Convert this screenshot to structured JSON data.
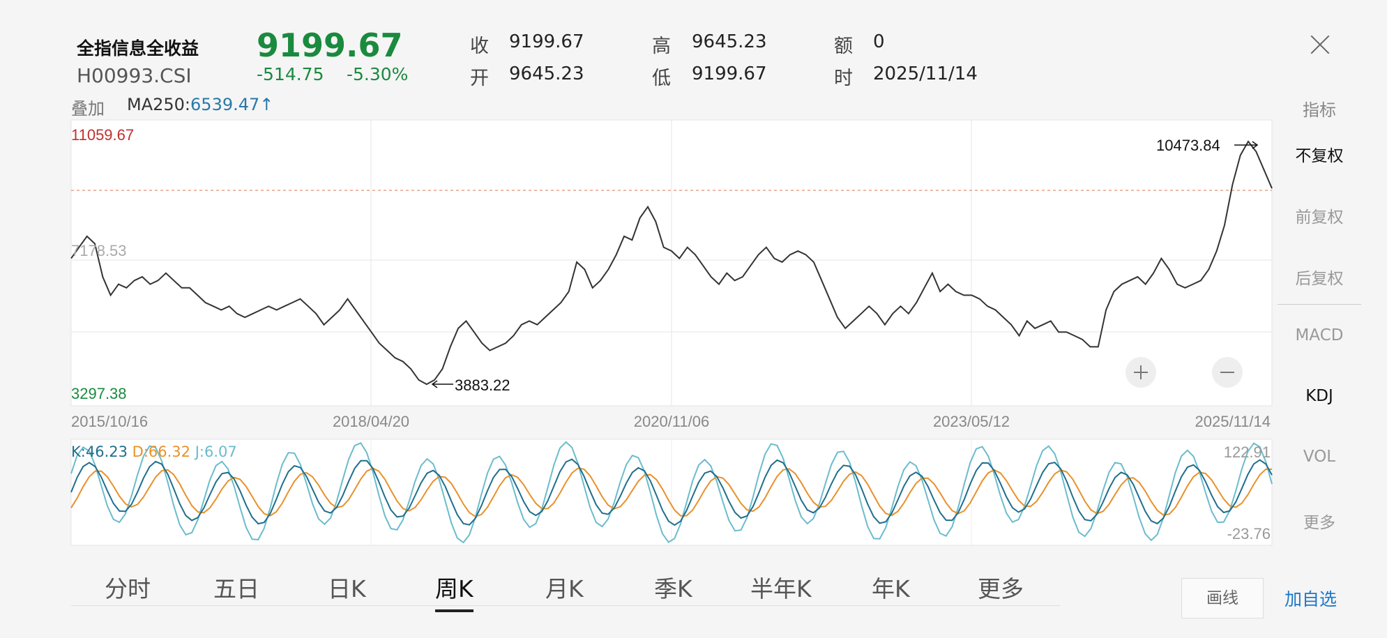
{
  "header": {
    "name": "全指信息全收益",
    "code": "H00993.CSI",
    "price": "9199.67",
    "change": "-514.75",
    "change_pct": "-5.30%",
    "stats": [
      {
        "label": "收",
        "value": "9199.67"
      },
      {
        "label": "开",
        "value": "9645.23"
      },
      {
        "label": "高",
        "value": "9645.23"
      },
      {
        "label": "低",
        "value": "9199.67"
      },
      {
        "label": "额",
        "value": "0"
      },
      {
        "label": "时",
        "value": "2025/11/14"
      }
    ]
  },
  "overlay": {
    "label": "叠加",
    "ma_label": "MA250:",
    "ma_value": "6539.47",
    "ma_arrow": "↑"
  },
  "sidebar": {
    "title": "指标",
    "items": [
      {
        "label": "不复权",
        "active": true
      },
      {
        "label": "前复权",
        "active": false
      },
      {
        "label": "后复权",
        "active": false
      },
      {
        "label": "MACD",
        "active": false
      },
      {
        "label": "KDJ",
        "active": true
      },
      {
        "label": "VOL",
        "active": false
      },
      {
        "label": "更多",
        "active": false
      }
    ]
  },
  "main_chart": {
    "y_max_label": "11059.67",
    "y_mid_label": "7178.53",
    "y_min_label": "3297.38",
    "high_marker": "10473.84",
    "low_marker": "3883.22",
    "x_labels": [
      "2015/10/16",
      "2018/04/20",
      "2020/11/06",
      "2023/05/12",
      "2025/11/14"
    ],
    "colors": {
      "line": "#333333",
      "max": "#c0302d",
      "min": "#1a8a3e",
      "ref": "#e9a08a",
      "grid": "#e4e4e4"
    }
  },
  "kdj": {
    "k_label": "K:46.23",
    "d_label": "D:66.32",
    "j_label": "J:6.07",
    "max_label": "122.91",
    "min_label": "-23.76",
    "colors": {
      "k": "#1f6e8c",
      "d": "#e8912a",
      "j": "#6bbccb"
    }
  },
  "tabs": [
    {
      "label": "分时",
      "active": false
    },
    {
      "label": "五日",
      "active": false
    },
    {
      "label": "日K",
      "active": false
    },
    {
      "label": "周K",
      "active": true
    },
    {
      "label": "月K",
      "active": false
    },
    {
      "label": "季K",
      "active": false
    },
    {
      "label": "半年K",
      "active": false
    },
    {
      "label": "年K",
      "active": false
    },
    {
      "label": "更多",
      "active": false
    }
  ],
  "actions": {
    "draw": "画线",
    "add": "加自选"
  },
  "chart_data": {
    "type": "line",
    "x_range": [
      "2015/10/16",
      "2025/11/14"
    ],
    "ylim": [
      3297.38,
      11059.67
    ],
    "series": [
      {
        "values": [
          7300,
          7600,
          7900,
          7700,
          6800,
          6300,
          6600,
          6500,
          6700,
          6800,
          6600,
          6700,
          6900,
          6700,
          6500,
          6500,
          6300,
          6100,
          6000,
          5900,
          6000,
          5800,
          5700,
          5800,
          5900,
          6000,
          5900,
          6000,
          6100,
          6200,
          6000,
          5800,
          5500,
          5700,
          5900,
          6200,
          5900,
          5600,
          5300,
          5000,
          4800,
          4600,
          4500,
          4300,
          4000,
          3883,
          4000,
          4300,
          4900,
          5400,
          5600,
          5300,
          5000,
          4800,
          4900,
          5000,
          5200,
          5500,
          5600,
          5500,
          5700,
          5900,
          6100,
          6400,
          7200,
          7000,
          6500,
          6700,
          7000,
          7400,
          7900,
          7800,
          8400,
          8700,
          8300,
          7600,
          7500,
          7300,
          7600,
          7400,
          7100,
          6800,
          6600,
          6900,
          6700,
          6800,
          7100,
          7400,
          7600,
          7300,
          7200,
          7400,
          7500,
          7400,
          7200,
          6700,
          6200,
          5700,
          5400,
          5600,
          5800,
          6000,
          5800,
          5500,
          5800,
          6000,
          5800,
          6100,
          6500,
          6900,
          6400,
          6600,
          6400,
          6300,
          6300,
          6200,
          6000,
          5900,
          5700,
          5500,
          5200,
          5600,
          5400,
          5500,
          5600,
          5300,
          5300,
          5200,
          5100,
          4900,
          4900,
          5900,
          6400,
          6600,
          6700,
          6800,
          6600,
          6900,
          7300,
          7000,
          6600,
          6500,
          6600,
          6700,
          7000,
          7500,
          8200,
          9300,
          10100,
          10473.84,
          10200,
          9700,
          9199.67
        ]
      }
    ]
  }
}
